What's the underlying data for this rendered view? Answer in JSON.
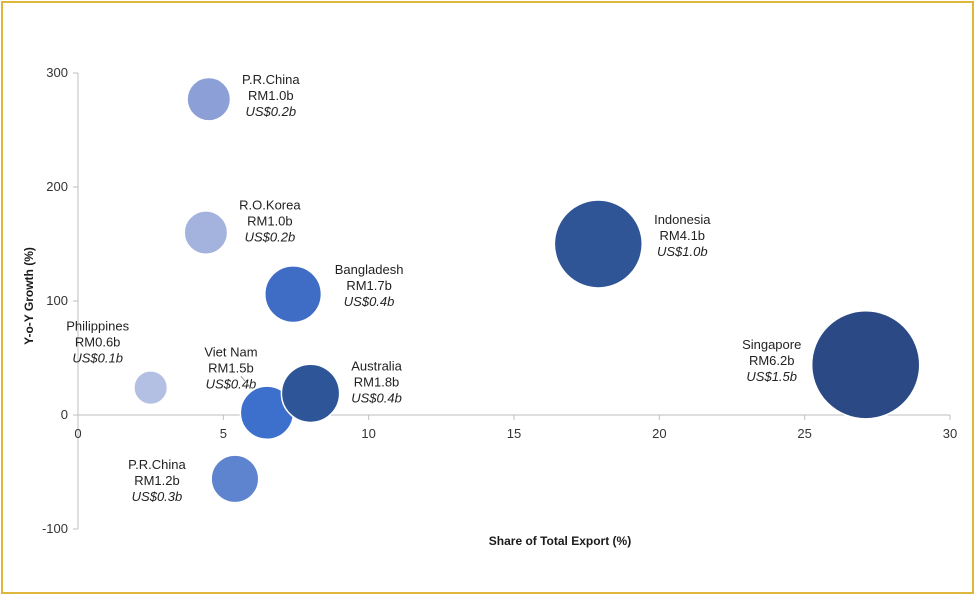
{
  "chart_data": {
    "type": "scatter",
    "xlabel": "Share of Total Export (%)",
    "ylabel": "Y-o-Y Growth (%)",
    "xlim": [
      0,
      30
    ],
    "ylim": [
      -100,
      300
    ],
    "x_ticks": [
      0,
      5,
      10,
      15,
      20,
      25,
      30
    ],
    "y_ticks": [
      -100,
      0,
      100,
      200,
      300
    ],
    "x_tick_labels": [
      "0",
      "5",
      "10",
      "15",
      "20",
      "25",
      "30"
    ],
    "y_tick_labels": [
      "-100",
      "0",
      "100",
      "200",
      "300"
    ],
    "grid": false,
    "points": [
      {
        "name": "P.R.China",
        "value_rm": "RM1.0b",
        "value_usd": "US$0.2b",
        "x": 4.5,
        "y": 277,
        "size": 1.0,
        "color": "#8ca0d7",
        "label_pos": "right-top"
      },
      {
        "name": "R.O.Korea",
        "value_rm": "RM1.0b",
        "value_usd": "US$0.2b",
        "x": 4.4,
        "y": 160,
        "size": 1.0,
        "color": "#a4b2de",
        "label_pos": "right-top"
      },
      {
        "name": "Bangladesh",
        "value_rm": "RM1.7b",
        "value_usd": "US$0.4b",
        "x": 7.4,
        "y": 106,
        "size": 1.7,
        "color": "#3f6cc4",
        "label_pos": "right-top"
      },
      {
        "name": "Indonesia",
        "value_rm": "RM4.1b",
        "value_usd": "US$1.0b",
        "x": 17.9,
        "y": 150,
        "size": 4.1,
        "color": "#2f5597",
        "label_pos": "right"
      },
      {
        "name": "Philippines",
        "value_rm": "RM0.6b",
        "value_usd": "US$0.1b",
        "x": 2.5,
        "y": 24,
        "size": 0.6,
        "color": "#b4c0e3",
        "label_pos": "top"
      },
      {
        "name": "Viet Nam",
        "value_rm": "RM1.5b",
        "value_usd": "US$0.4b",
        "x": 6.5,
        "y": 2,
        "size": 1.5,
        "color": "#3d6fcc",
        "label_pos": "top-left"
      },
      {
        "name": "Australia",
        "value_rm": "RM1.8b",
        "value_usd": "US$0.4b",
        "x": 8.0,
        "y": 19,
        "size": 1.8,
        "color": "#2e5597",
        "label_pos": "right-top"
      },
      {
        "name": "Singapore",
        "value_rm": "RM6.2b",
        "value_usd": "US$1.5b",
        "x": 27.1,
        "y": 44,
        "size": 6.2,
        "color": "#2b4a85",
        "label_pos": "left"
      },
      {
        "name": "P.R.China",
        "value_rm": "RM1.2b",
        "value_usd": "US$0.3b",
        "x": 5.4,
        "y": -56,
        "size": 1.2,
        "color": "#5f84cf",
        "label_pos": "left"
      }
    ]
  },
  "colors": {
    "frame": "#dfb63c",
    "axis": "#bfbfbf",
    "text": "#222222"
  }
}
